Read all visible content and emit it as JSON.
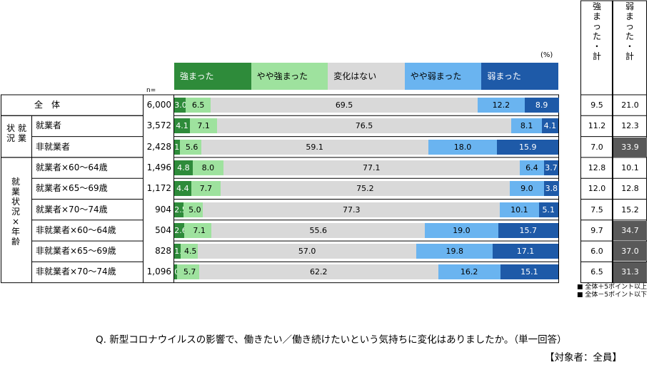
{
  "unit": "(%)",
  "n_label": "n=",
  "legend": [
    {
      "label": "強まった",
      "color": "#2e8b3a",
      "text_color": "#ffffff"
    },
    {
      "label": "やや強まった",
      "color": "#9ee29e",
      "text_color": "#000000"
    },
    {
      "label": "変化はない",
      "color": "#d9d9d9",
      "text_color": "#000000"
    },
    {
      "label": "やや弱まった",
      "color": "#6ab4f0",
      "text_color": "#000000"
    },
    {
      "label": "弱まった",
      "color": "#1e5aa8",
      "text_color": "#ffffff"
    }
  ],
  "total_headers": {
    "strong": "強まった・計",
    "weak": "弱まった・計"
  },
  "group_labels": {
    "employment": "就業状況",
    "employment_age": "就業状況×年齢"
  },
  "notes": [
    "■ 全体＋5ポイント以上",
    "■ 全体－5ポイント以下"
  ],
  "question": "Q. 新型コロナウイルスの影響で、働きたい／働き続けたいという気持ちに変化はありましたか。（単一回答）",
  "target": "【対象者：全員】",
  "chart_data": {
    "type": "bar",
    "stacked": true,
    "orientation": "horizontal",
    "categories": [
      "全　体",
      "就業者",
      "非就業者",
      "就業者×60～64歳",
      "就業者×65～69歳",
      "就業者×70～74歳",
      "非就業者×60～64歳",
      "非就業者×65～69歳",
      "非就業者×70～74歳"
    ],
    "n": [
      "6,000",
      "3,572",
      "2,428",
      "1,496",
      "1,172",
      "904",
      "504",
      "828",
      "1,096"
    ],
    "series": [
      {
        "name": "強まった",
        "values": [
          3.0,
          4.1,
          1.4,
          4.8,
          4.4,
          2.5,
          2.6,
          1.6,
          0.8
        ]
      },
      {
        "name": "やや強まった",
        "values": [
          6.5,
          7.1,
          5.6,
          8.0,
          7.7,
          5.0,
          7.1,
          4.5,
          5.7
        ]
      },
      {
        "name": "変化はない",
        "values": [
          69.5,
          76.5,
          59.1,
          77.1,
          75.2,
          77.3,
          55.6,
          57.0,
          62.2
        ]
      },
      {
        "name": "やや弱まった",
        "values": [
          12.2,
          8.1,
          18.0,
          6.4,
          9.0,
          10.1,
          19.0,
          19.8,
          16.2
        ]
      },
      {
        "name": "弱まった",
        "values": [
          8.9,
          4.1,
          15.9,
          3.7,
          3.8,
          5.1,
          15.7,
          17.1,
          15.1
        ]
      }
    ],
    "totals": {
      "strong": [
        "9.5",
        "11.2",
        "7.0",
        "12.8",
        "12.0",
        "7.5",
        "9.7",
        "6.0",
        "6.5"
      ],
      "weak": [
        "21.0",
        "12.3",
        "33.9",
        "10.1",
        "12.8",
        "15.2",
        "34.7",
        "37.0",
        "31.3"
      ]
    },
    "highlight_weak": [
      false,
      false,
      true,
      false,
      false,
      false,
      true,
      true,
      true
    ],
    "xlim": [
      0,
      100
    ]
  }
}
